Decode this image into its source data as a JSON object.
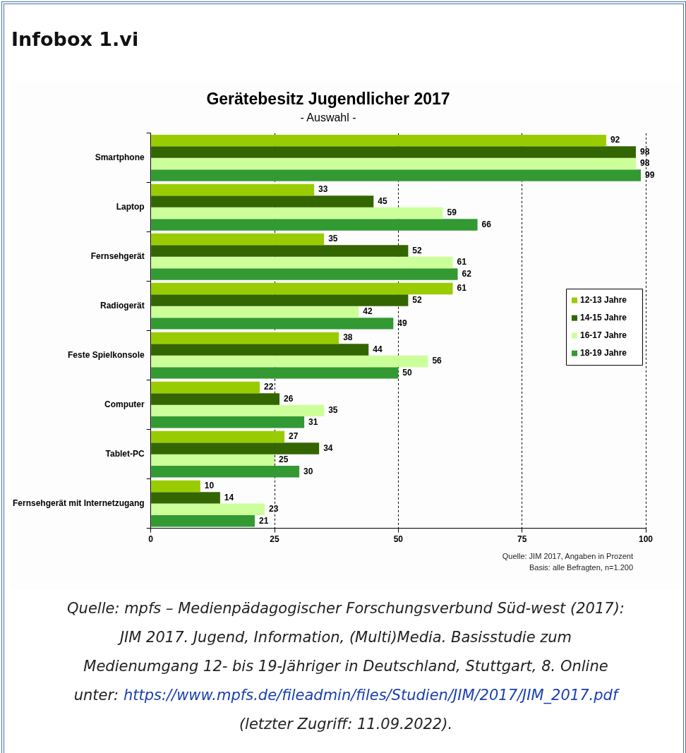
{
  "chart_data": {
    "type": "bar",
    "orientation": "horizontal",
    "title": "Gerätebesitz Jugendlicher 2017",
    "subtitle": "- Auswahl -",
    "categories": [
      "Smartphone",
      "Laptop",
      "Fernsehgerät",
      "Radiogerät",
      "Feste Spielkonsole",
      "Computer",
      "Tablet-PC",
      "Fernsehgerät mit Internetzugang"
    ],
    "series": [
      {
        "name": "12-13 Jahre",
        "color": "#99cc00",
        "values": [
          92,
          33,
          35,
          61,
          38,
          22,
          27,
          10
        ]
      },
      {
        "name": "14-15 Jahre",
        "color": "#336600",
        "values": [
          98,
          45,
          52,
          52,
          44,
          26,
          34,
          14
        ]
      },
      {
        "name": "16-17 Jahre",
        "color": "#ccff99",
        "values": [
          98,
          59,
          61,
          42,
          56,
          35,
          25,
          23
        ]
      },
      {
        "name": "18-19 Jahre",
        "color": "#339933",
        "values": [
          99,
          66,
          62,
          49,
          50,
          31,
          30,
          21
        ]
      }
    ],
    "xlim": [
      0,
      100
    ],
    "xticks": [
      0,
      25,
      50,
      75,
      100
    ],
    "grid": "x",
    "legend": "right",
    "data_labels": true,
    "annotations": [
      "Infobox 1.vi",
      "Quelle: JIM 2017, Angaben in Prozent",
      "Basis: alle Befragten, n=1.200",
      "Quelle: mpfs – Medienpädagogischer Forschungsverbund Süd-west (2017): JIM 2017. Jugend, Information, (Multi)Media. Basisstudie zum Medienumgang 12- bis 19-Jähriger in Deutschland, Stuttgart, 8. Online unter:",
      "https://www.mpfs.de/fileadmin/files/Studien/JIM/2017/JIM_2017.pdf",
      "(letzter Zugriff: 11.09.2022)."
    ]
  }
}
